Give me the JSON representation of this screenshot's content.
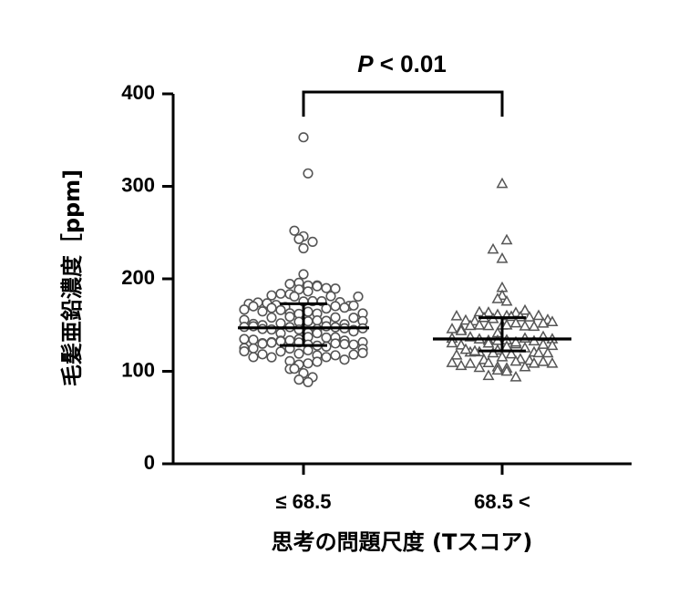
{
  "chart_data": {
    "type": "scatter",
    "subtype": "dot-plot with median and interquartile range",
    "xlabel": "思考の問題尺度 (Tスコア)",
    "ylabel": "毛髪亜鉛濃度［ppm]",
    "ylim": [
      0,
      400
    ],
    "yticks": [
      "0",
      "100",
      "200",
      "300",
      "400"
    ],
    "grid": false,
    "significance": {
      "p": "P",
      "text": " < 0.01"
    },
    "groups": [
      {
        "category": "≤ 68.5",
        "marker": "circle",
        "median": 147,
        "q1": 128,
        "q3": 173,
        "outliers": [
          353,
          314,
          252,
          246,
          243,
          240,
          233
        ]
      },
      {
        "category": "68.5 <",
        "marker": "triangle",
        "median": 135,
        "q1": 122,
        "q3": 158,
        "outliers": [
          303,
          242,
          232,
          222
        ]
      }
    ]
  }
}
